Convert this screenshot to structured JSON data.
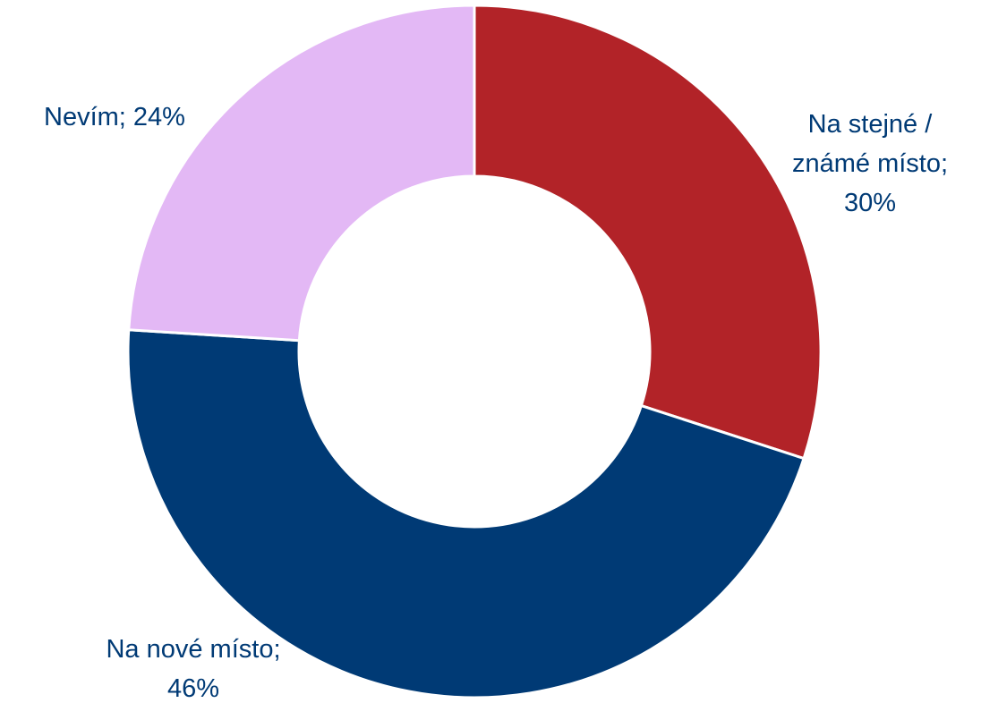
{
  "chart_data": {
    "type": "pie",
    "variant": "donut",
    "title": "",
    "start_angle_deg": 0,
    "direction": "clockwise",
    "legend": "none",
    "label_format": "{category}; {value}%",
    "slices": [
      {
        "category": "Na stejné / známé místo",
        "value": 30,
        "color": "#b22328",
        "label_lines": [
          "Na stejné /",
          "známé místo;",
          "30%"
        ]
      },
      {
        "category": "Na nové místo",
        "value": 46,
        "color": "#003a75",
        "label_lines": [
          "Na nové místo;",
          "46%"
        ]
      },
      {
        "category": "Nevím",
        "value": 24,
        "color": "#e3b8f5",
        "label_lines": [
          "Nevím; 24%"
        ]
      }
    ],
    "label_color": "#003a75",
    "separator_color": "#ffffff"
  }
}
